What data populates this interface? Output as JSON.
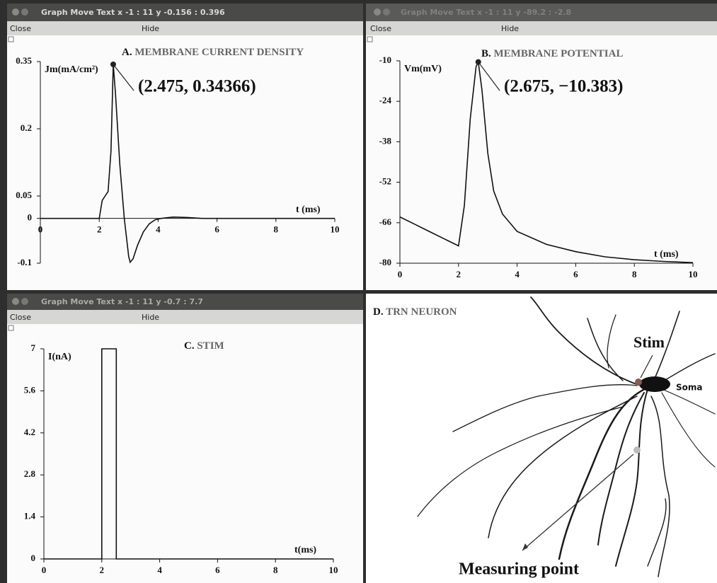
{
  "windows": [
    {
      "title": "Graph Move Text x -1 : 11  y -0.156 : 0.396",
      "menu": [
        "Close",
        "Hide"
      ]
    },
    {
      "title": "Graph Move Text x -1 : 11  y -89.2 : -2.8",
      "menu": [
        "Close",
        "Hide"
      ]
    },
    {
      "title": "Graph Move Text x -1 : 11  y -0.7 : 7.7",
      "menu": [
        "Close",
        "Hide"
      ]
    }
  ],
  "chart_data": [
    {
      "type": "line",
      "panel_label": "A.",
      "title": "MEMBRANE CURRENT DENSITY",
      "ylabel": "Jm(mA/cm²)",
      "xlabel": "t (ms)",
      "x": [
        0,
        2,
        2.1,
        2.2,
        2.3,
        2.4,
        2.475,
        2.55,
        2.7,
        2.85,
        3.0,
        3.05,
        3.15,
        3.3,
        3.5,
        3.7,
        3.9,
        4.1,
        4.5,
        5.0,
        5.5,
        10
      ],
      "values": [
        0,
        0,
        0.04,
        0.05,
        0.06,
        0.15,
        0.34366,
        0.28,
        0.12,
        0.0,
        -0.085,
        -0.098,
        -0.09,
        -0.06,
        -0.03,
        -0.012,
        -0.003,
        0,
        0.003,
        0.002,
        0,
        0
      ],
      "color": "#111111",
      "xlim": [
        0,
        10
      ],
      "xticks": [
        0,
        2,
        4,
        6,
        8,
        10
      ],
      "ylim": [
        -0.1,
        0.35
      ],
      "yticks": [
        0.35,
        0.2,
        0.05,
        0,
        -0.1
      ],
      "annotation": {
        "label": "(2.475, 0.34366)",
        "x": 2.475,
        "y": 0.34366
      }
    },
    {
      "type": "line",
      "panel_label": "B.",
      "title": "MEMBRANE POTENTIAL",
      "ylabel": "Vm(mV)",
      "xlabel": "t (ms)",
      "x": [
        0,
        0.5,
        1,
        1.5,
        2,
        2.2,
        2.4,
        2.6,
        2.675,
        2.8,
        3.0,
        3.2,
        3.5,
        4,
        5,
        6,
        7,
        8,
        9,
        10
      ],
      "values": [
        -64,
        -66.5,
        -69,
        -71.5,
        -74,
        -60,
        -30,
        -12,
        -10.383,
        -20,
        -42,
        -55,
        -63,
        -69,
        -73.5,
        -76,
        -77.8,
        -78.8,
        -79.4,
        -79.8
      ],
      "color": "#111111",
      "xlim": [
        0,
        10
      ],
      "xticks": [
        0,
        2,
        4,
        6,
        8,
        10
      ],
      "ylim": [
        -80,
        -10
      ],
      "yticks": [
        -10,
        -24,
        -38,
        -52,
        -66,
        -80
      ],
      "annotation": {
        "label": "(2.675, −10.383)",
        "x": 2.675,
        "y": -10.383
      }
    },
    {
      "type": "line",
      "panel_label": "C.",
      "title": "STIM",
      "ylabel": "I(nA)",
      "xlabel": "t(ms)",
      "x": [
        0,
        2,
        2,
        2.5,
        2.5,
        10
      ],
      "values": [
        0,
        0,
        7,
        7,
        0,
        0
      ],
      "color": "#111111",
      "xlim": [
        0,
        10
      ],
      "xticks": [
        0,
        2,
        4,
        6,
        8,
        10
      ],
      "ylim": [
        0,
        7
      ],
      "yticks": [
        7,
        5.6,
        4.2,
        2.8,
        1.4,
        0
      ]
    }
  ],
  "neuron_panel": {
    "panel_label": "D.",
    "title": "TRN NEURON",
    "stim_label": "Stim",
    "soma_label": "Soma",
    "measure_label": "Measuring point"
  }
}
